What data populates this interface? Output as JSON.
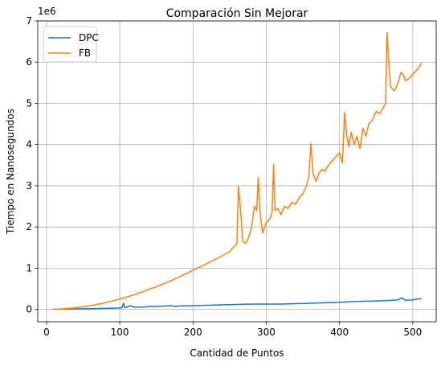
{
  "chart_data": {
    "type": "line",
    "title": "Comparación Sin Mejorar",
    "xlabel": "Cantidad de Puntos",
    "ylabel": "Tiempo en Nanosegundos",
    "y_offset_label": "1e6",
    "xlim": [
      -12,
      532
    ],
    "ylim": [
      -0.3,
      7.0
    ],
    "x_ticks": [
      0,
      100,
      200,
      300,
      400,
      500
    ],
    "y_ticks": [
      0,
      1,
      2,
      3,
      4,
      5,
      6,
      7
    ],
    "x_tick_labels": [
      "0",
      "100",
      "200",
      "300",
      "400",
      "500"
    ],
    "y_tick_labels": [
      "0",
      "1",
      "2",
      "3",
      "4",
      "5",
      "6",
      "7"
    ],
    "grid": true,
    "legend_position": "top-left",
    "series": [
      {
        "name": "DPC",
        "color": "#1f77b4",
        "points": [
          [
            8,
            0.005
          ],
          [
            20,
            0.008
          ],
          [
            40,
            0.012
          ],
          [
            60,
            0.018
          ],
          [
            80,
            0.025
          ],
          [
            100,
            0.035
          ],
          [
            103,
            0.04
          ],
          [
            105,
            0.15
          ],
          [
            107,
            0.04
          ],
          [
            115,
            0.09
          ],
          [
            120,
            0.05
          ],
          [
            125,
            0.06
          ],
          [
            130,
            0.05
          ],
          [
            140,
            0.07
          ],
          [
            150,
            0.07
          ],
          [
            160,
            0.08
          ],
          [
            170,
            0.09
          ],
          [
            175,
            0.07
          ],
          [
            180,
            0.08
          ],
          [
            200,
            0.09
          ],
          [
            220,
            0.1
          ],
          [
            240,
            0.11
          ],
          [
            260,
            0.12
          ],
          [
            280,
            0.13
          ],
          [
            300,
            0.13
          ],
          [
            320,
            0.13
          ],
          [
            340,
            0.14
          ],
          [
            360,
            0.15
          ],
          [
            380,
            0.16
          ],
          [
            400,
            0.17
          ],
          [
            420,
            0.19
          ],
          [
            440,
            0.2
          ],
          [
            460,
            0.21
          ],
          [
            480,
            0.23
          ],
          [
            485,
            0.28
          ],
          [
            490,
            0.22
          ],
          [
            500,
            0.23
          ],
          [
            505,
            0.25
          ],
          [
            512,
            0.26
          ]
        ]
      },
      {
        "name": "FB",
        "color": "#ff7f0e",
        "points": [
          [
            8,
            0.002
          ],
          [
            20,
            0.01
          ],
          [
            40,
            0.04
          ],
          [
            60,
            0.09
          ],
          [
            80,
            0.16
          ],
          [
            100,
            0.25
          ],
          [
            110,
            0.3
          ],
          [
            120,
            0.36
          ],
          [
            130,
            0.42
          ],
          [
            140,
            0.49
          ],
          [
            150,
            0.55
          ],
          [
            160,
            0.62
          ],
          [
            170,
            0.7
          ],
          [
            180,
            0.78
          ],
          [
            190,
            0.86
          ],
          [
            200,
            0.95
          ],
          [
            210,
            1.03
          ],
          [
            220,
            1.12
          ],
          [
            230,
            1.21
          ],
          [
            240,
            1.3
          ],
          [
            250,
            1.4
          ],
          [
            255,
            1.5
          ],
          [
            260,
            1.6
          ],
          [
            262,
            2.98
          ],
          [
            265,
            2.4
          ],
          [
            268,
            1.65
          ],
          [
            272,
            1.6
          ],
          [
            276,
            1.75
          ],
          [
            280,
            2.0
          ],
          [
            284,
            2.5
          ],
          [
            287,
            2.4
          ],
          [
            289,
            3.2
          ],
          [
            292,
            2.3
          ],
          [
            295,
            1.85
          ],
          [
            300,
            2.1
          ],
          [
            305,
            2.2
          ],
          [
            308,
            2.35
          ],
          [
            310,
            3.52
          ],
          [
            312,
            2.4
          ],
          [
            316,
            2.45
          ],
          [
            320,
            2.3
          ],
          [
            325,
            2.5
          ],
          [
            330,
            2.45
          ],
          [
            335,
            2.6
          ],
          [
            340,
            2.55
          ],
          [
            345,
            2.7
          ],
          [
            350,
            2.8
          ],
          [
            355,
            3.0
          ],
          [
            358,
            3.2
          ],
          [
            361,
            4.02
          ],
          [
            364,
            3.3
          ],
          [
            368,
            3.1
          ],
          [
            372,
            3.3
          ],
          [
            376,
            3.4
          ],
          [
            380,
            3.35
          ],
          [
            385,
            3.5
          ],
          [
            390,
            3.6
          ],
          [
            395,
            3.7
          ],
          [
            400,
            3.8
          ],
          [
            404,
            3.55
          ],
          [
            407,
            4.78
          ],
          [
            410,
            4.2
          ],
          [
            413,
            3.95
          ],
          [
            416,
            4.3
          ],
          [
            420,
            4.0
          ],
          [
            424,
            4.2
          ],
          [
            428,
            3.9
          ],
          [
            432,
            4.4
          ],
          [
            436,
            4.2
          ],
          [
            440,
            4.5
          ],
          [
            445,
            4.6
          ],
          [
            450,
            4.8
          ],
          [
            455,
            4.75
          ],
          [
            460,
            4.9
          ],
          [
            463,
            5.0
          ],
          [
            465,
            6.72
          ],
          [
            468,
            5.8
          ],
          [
            470,
            5.4
          ],
          [
            475,
            5.3
          ],
          [
            480,
            5.5
          ],
          [
            484,
            5.75
          ],
          [
            487,
            5.7
          ],
          [
            490,
            5.55
          ],
          [
            495,
            5.6
          ],
          [
            500,
            5.7
          ],
          [
            505,
            5.8
          ],
          [
            510,
            5.9
          ],
          [
            512,
            5.98
          ]
        ]
      }
    ]
  }
}
